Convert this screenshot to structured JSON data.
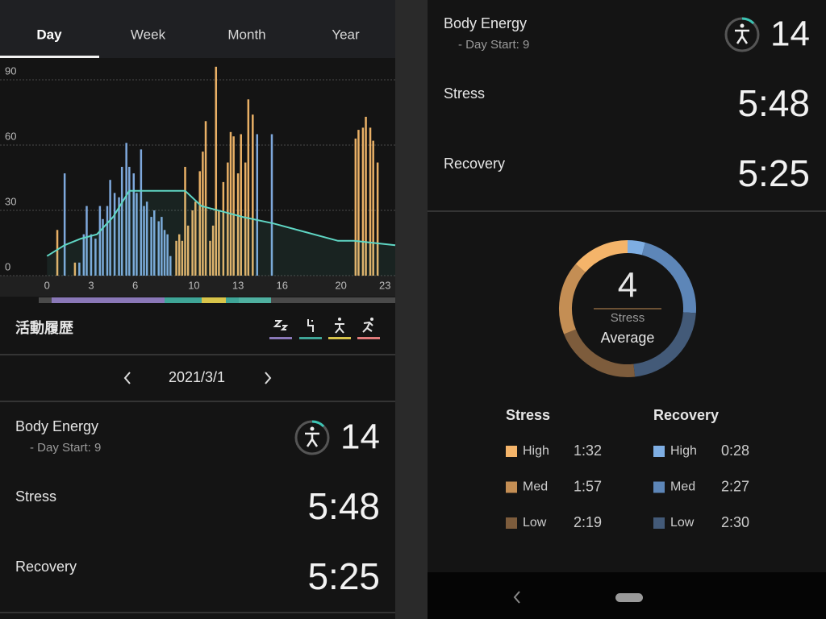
{
  "left": {
    "tabs": [
      "Day",
      "Week",
      "Month",
      "Year"
    ],
    "chart_data": {
      "type": "bar",
      "xlim": [
        -3.2,
        23.7
      ],
      "ylim": [
        0,
        100
      ],
      "xticks": [
        0,
        3,
        6,
        10,
        13,
        16,
        20,
        23
      ],
      "yticks": [
        0,
        30,
        60,
        90
      ],
      "grid": true,
      "series": [
        {
          "type": "bar",
          "color": "#7ea8dc",
          "x": [
            1.2,
            2.2,
            2.5,
            2.7,
            3.0,
            3.3,
            3.6,
            3.8,
            4.1,
            4.3,
            4.6,
            4.9,
            5.1,
            5.4,
            5.6,
            5.9,
            6.1,
            6.4,
            6.6,
            6.8,
            7.1,
            7.3,
            7.6,
            7.8,
            8.0,
            8.2,
            8.4,
            14.3,
            15.3
          ],
          "values": [
            47,
            6,
            19,
            32,
            19,
            17,
            32,
            26,
            32,
            44,
            38,
            36,
            50,
            61,
            50,
            47,
            38,
            58,
            32,
            34,
            27,
            30,
            25,
            27,
            21,
            19,
            9,
            65,
            65
          ]
        },
        {
          "type": "bar",
          "color": "#e9b066",
          "x": [
            0.7,
            1.9,
            8.8,
            9.0,
            9.2,
            9.4,
            9.6,
            9.9,
            10.1,
            10.4,
            10.6,
            10.8,
            11.1,
            11.3,
            11.5,
            11.7,
            12.0,
            12.3,
            12.5,
            12.7,
            13.0,
            13.2,
            13.5,
            13.7,
            14.0,
            21.0,
            21.2,
            21.5,
            21.7,
            22.0,
            22.2,
            22.5
          ],
          "values": [
            21,
            6,
            16,
            19,
            16,
            50,
            23,
            30,
            34,
            48,
            57,
            71,
            16,
            23,
            96,
            30,
            43,
            52,
            66,
            64,
            47,
            65,
            52,
            81,
            74,
            63,
            67,
            68,
            73,
            68,
            62,
            52
          ]
        },
        {
          "type": "line",
          "color": "#5fd6c4",
          "x": [
            0.0,
            1.2,
            2.3,
            3.4,
            4.5,
            5.6,
            6.7,
            9.4,
            10.5,
            12.2,
            13.3,
            15.4,
            17.6,
            19.8,
            20.9,
            23.7
          ],
          "values": [
            9,
            14,
            17,
            19,
            27,
            39,
            39,
            39,
            32,
            29,
            27,
            24,
            20,
            16,
            16,
            14
          ]
        }
      ]
    },
    "activity_title": "活動履歴",
    "date": "2021/3/1",
    "summary": {
      "body_energy_label": "Body Energy",
      "day_start": "- Day Start: 9",
      "body_energy": 14,
      "stress_label": "Stress",
      "stress": "5:48",
      "recovery_label": "Recovery",
      "recovery": "5:25"
    }
  },
  "right": {
    "summary": {
      "body_energy_label": "Body Energy",
      "day_start": "- Day Start: 9",
      "body_energy": 14,
      "stress_label": "Stress",
      "stress": "5:48",
      "recovery_label": "Recovery",
      "recovery": "5:25"
    },
    "donut": {
      "value": 4,
      "label": "Stress",
      "caption": "Average"
    },
    "stress": {
      "title": "Stress",
      "rows": [
        {
          "label": "High",
          "time": "1:32",
          "color": "#f4b46a"
        },
        {
          "label": "Med",
          "time": "1:57",
          "color": "#c48e54"
        },
        {
          "label": "Low",
          "time": "2:19",
          "color": "#7d5c3c"
        }
      ]
    },
    "recovery": {
      "title": "Recovery",
      "rows": [
        {
          "label": "High",
          "time": "0:28",
          "color": "#7eaee3"
        },
        {
          "label": "Med",
          "time": "2:27",
          "color": "#5d86b8"
        },
        {
          "label": "Low",
          "time": "2:30",
          "color": "#435a78"
        }
      ]
    }
  }
}
